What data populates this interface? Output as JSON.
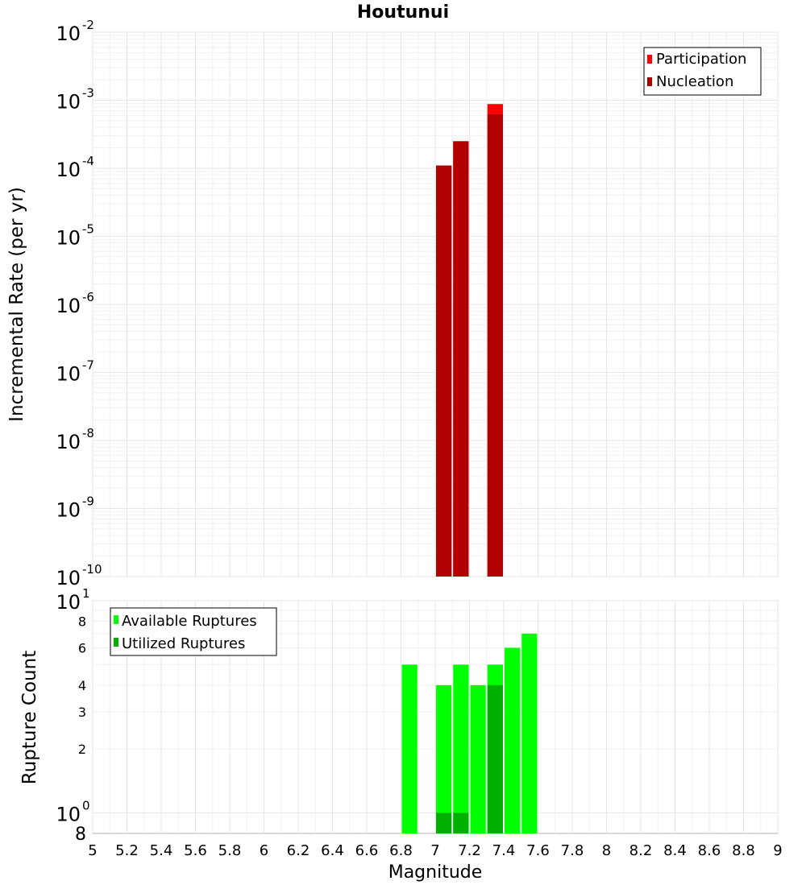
{
  "chart_data": [
    {
      "type": "bar",
      "title": "Houtunui",
      "xlabel": "",
      "ylabel": "Incremental Rate (per yr)",
      "xlim": [
        5,
        9
      ],
      "ylim": [
        1e-10,
        0.01
      ],
      "y_scale": "log",
      "y_tick_exponents": [
        "-2",
        "-3",
        "-4",
        "-5",
        "-6",
        "-7",
        "-8",
        "-9",
        "-10"
      ],
      "bar_width": 0.1,
      "grid": true,
      "legend_position": "top-right",
      "series": [
        {
          "name": "Participation",
          "color": "#ff0000",
          "x": [
            7.05,
            7.15,
            7.35
          ],
          "values": [
            0.00011,
            0.00025,
            0.00088
          ]
        },
        {
          "name": "Nucleation",
          "color": "#b00000",
          "x": [
            7.05,
            7.15,
            7.35
          ],
          "values": [
            0.00011,
            0.00025,
            0.00062
          ]
        }
      ]
    },
    {
      "type": "bar",
      "title": "",
      "xlabel": "Magnitude",
      "ylabel": "Rupture Count",
      "xlim": [
        5,
        9
      ],
      "ylim": [
        0.8,
        10
      ],
      "y_scale": "log",
      "y_tick_labels": [
        "2",
        "3",
        "4",
        "6",
        "8",
        "8"
      ],
      "y_tick_exponents": [
        "0",
        "1"
      ],
      "x_ticks": [
        "5",
        "5.2",
        "5.4",
        "5.6",
        "5.8",
        "6",
        "6.2",
        "6.4",
        "6.6",
        "6.8",
        "7",
        "7.2",
        "7.4",
        "7.6",
        "7.8",
        "8",
        "8.2",
        "8.4",
        "8.6",
        "8.8",
        "9"
      ],
      "bar_width": 0.1,
      "grid": true,
      "legend_position": "top-left",
      "series": [
        {
          "name": "Available Ruptures",
          "color": "#00ff00",
          "x": [
            6.85,
            7.05,
            7.15,
            7.25,
            7.35,
            7.45,
            7.55
          ],
          "values": [
            5,
            4,
            5,
            4,
            5,
            6,
            7
          ]
        },
        {
          "name": "Utilized Ruptures",
          "color": "#00b000",
          "x": [
            7.05,
            7.15,
            7.35
          ],
          "values": [
            1,
            1,
            4
          ]
        }
      ]
    }
  ]
}
